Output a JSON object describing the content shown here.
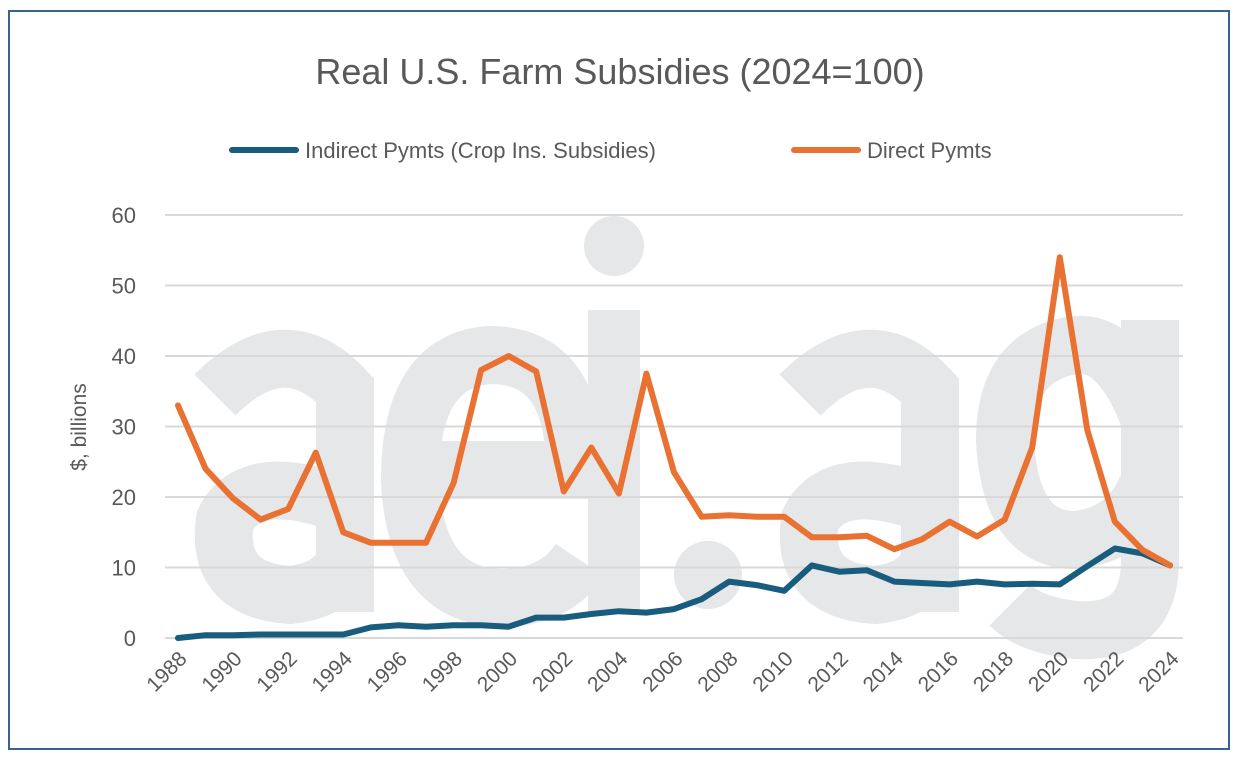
{
  "chart_data": {
    "type": "line",
    "title": "Real U.S. Farm Subsidies (2024=100)",
    "xlabel": "",
    "ylabel": "$, billions",
    "ylim": [
      0,
      60
    ],
    "yticks": [
      0,
      10,
      20,
      30,
      40,
      50,
      60
    ],
    "xtick_labels": [
      "1988",
      "1990",
      "1992",
      "1994",
      "1996",
      "1998",
      "2000",
      "2002",
      "2004",
      "2006",
      "2008",
      "2010",
      "2012",
      "2014",
      "2016",
      "2018",
      "2020",
      "2022",
      "2024"
    ],
    "grid": "horizontal",
    "legend_placement": "top",
    "watermark": "aei.ag",
    "x": [
      1988,
      1989,
      1990,
      1991,
      1992,
      1993,
      1994,
      1995,
      1996,
      1997,
      1998,
      1999,
      2000,
      2001,
      2002,
      2003,
      2004,
      2005,
      2006,
      2007,
      2008,
      2009,
      2010,
      2011,
      2012,
      2013,
      2014,
      2015,
      2016,
      2017,
      2018,
      2019,
      2020,
      2021,
      2022,
      2023,
      2024
    ],
    "series": [
      {
        "name": "Indirect Pymts (Crop Ins. Subsidies)",
        "color": "#185c7e",
        "values": [
          0,
          0.4,
          0.4,
          0.5,
          0.5,
          0.5,
          0.5,
          1.5,
          1.8,
          1.6,
          1.8,
          1.8,
          1.6,
          2.9,
          2.9,
          3.4,
          3.8,
          3.6,
          4.1,
          5.5,
          8.0,
          7.5,
          6.7,
          10.3,
          9.4,
          9.6,
          8.0,
          7.8,
          7.6,
          8.0,
          7.6,
          7.7,
          7.6,
          10.2,
          12.7,
          12.0,
          10.3
        ]
      },
      {
        "name": "Direct Pymts",
        "color": "#e97132",
        "values": [
          33,
          24,
          19.8,
          16.8,
          18.3,
          26.3,
          15,
          13.5,
          13.5,
          13.5,
          22,
          38,
          40,
          37.8,
          20.8,
          27,
          20.5,
          37.5,
          23.5,
          17.2,
          17.4,
          17.2,
          17.2,
          14.3,
          14.3,
          14.5,
          12.6,
          14,
          16.5,
          14.4,
          16.8,
          27,
          54,
          29.5,
          16.5,
          12.5,
          10.3
        ]
      }
    ]
  }
}
